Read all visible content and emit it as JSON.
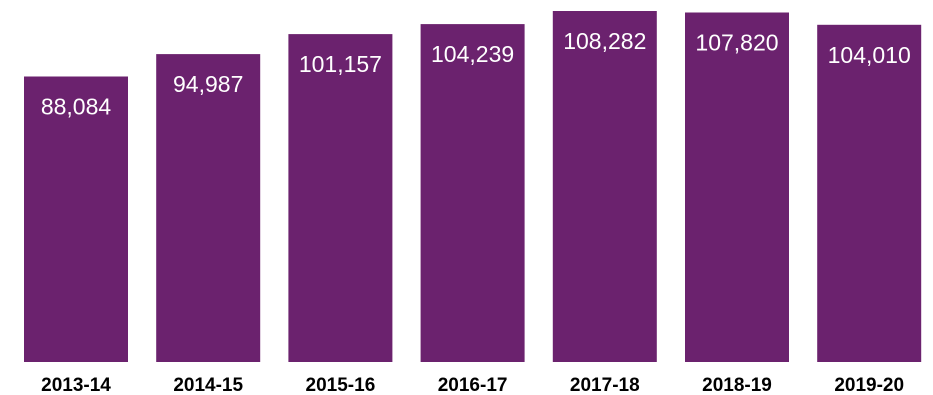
{
  "chart_data": {
    "type": "bar",
    "categories": [
      "2013-14",
      "2014-15",
      "2015-16",
      "2016-17",
      "2017-18",
      "2018-19",
      "2019-20"
    ],
    "values": [
      88084,
      94987,
      101157,
      104239,
      108282,
      107820,
      104010
    ],
    "value_labels": [
      "88,084",
      "94,987",
      "101,157",
      "104,239",
      "108,282",
      "107,820",
      "104,010"
    ],
    "title": "",
    "xlabel": "",
    "ylabel": "",
    "ylim": [
      0,
      110000
    ],
    "grid": false,
    "legend": "none",
    "colors": {
      "bar": "#6B226E",
      "value_label": "#ffffff",
      "category_label": "#000000"
    }
  }
}
